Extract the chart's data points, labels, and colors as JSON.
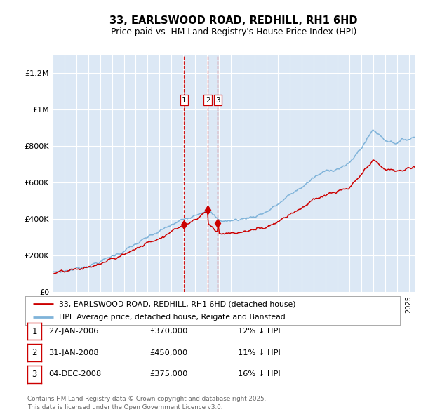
{
  "title": "33, EARLSWOOD ROAD, REDHILL, RH1 6HD",
  "subtitle": "Price paid vs. HM Land Registry's House Price Index (HPI)",
  "ylim": [
    0,
    1300000
  ],
  "yticks": [
    0,
    200000,
    400000,
    600000,
    800000,
    1000000,
    1200000
  ],
  "ytick_labels": [
    "£0",
    "£200K",
    "£400K",
    "£600K",
    "£800K",
    "£1M",
    "£1.2M"
  ],
  "sale_year_floats": [
    2006.08,
    2008.08,
    2008.92
  ],
  "sale_prices": [
    370000,
    450000,
    375000
  ],
  "sale_labels": [
    "1",
    "2",
    "3"
  ],
  "sale_info": [
    {
      "num": "1",
      "date": "27-JAN-2006",
      "price": "£370,000",
      "pct": "12%",
      "dir": "↓",
      "ref": "HPI"
    },
    {
      "num": "2",
      "date": "31-JAN-2008",
      "price": "£450,000",
      "pct": "11%",
      "dir": "↓",
      "ref": "HPI"
    },
    {
      "num": "3",
      "date": "04-DEC-2008",
      "price": "£375,000",
      "pct": "16%",
      "dir": "↓",
      "ref": "HPI"
    }
  ],
  "legend_line1": "33, EARLSWOOD ROAD, REDHILL, RH1 6HD (detached house)",
  "legend_line2": "HPI: Average price, detached house, Reigate and Banstead",
  "footer": "Contains HM Land Registry data © Crown copyright and database right 2025.\nThis data is licensed under the Open Government Licence v3.0.",
  "bg_color": "#dce8f5",
  "red_color": "#cc0000",
  "blue_color": "#7fb3d9",
  "grid_color": "#ffffff",
  "label_box_color": "#cc0000",
  "hpi_key_years": [
    1995,
    1996,
    1997,
    1998,
    1999,
    2000,
    2001,
    2002,
    2003,
    2004,
    2005,
    2006,
    2007,
    2008,
    2009,
    2010,
    2011,
    2012,
    2013,
    2014,
    2015,
    2016,
    2017,
    2018,
    2019,
    2020,
    2021,
    2022,
    2023,
    2024,
    2025.5
  ],
  "hpi_key_vals": [
    105000,
    115000,
    128000,
    145000,
    165000,
    195000,
    225000,
    260000,
    295000,
    330000,
    365000,
    395000,
    430000,
    455000,
    390000,
    390000,
    400000,
    415000,
    440000,
    480000,
    530000,
    575000,
    625000,
    660000,
    680000,
    700000,
    790000,
    890000,
    835000,
    820000,
    850000
  ],
  "red_key_years": [
    1995,
    1996,
    1997,
    1998,
    1999,
    2000,
    2001,
    2002,
    2003,
    2004,
    2005,
    2006.08,
    2006.08,
    2007,
    2008.08,
    2008.08,
    2009,
    2010,
    2011,
    2012,
    2013,
    2014,
    2015,
    2016,
    2017,
    2018,
    2019,
    2020,
    2021,
    2022,
    2023,
    2024,
    2025.5
  ],
  "red_key_vals": [
    100000,
    108000,
    120000,
    135000,
    152000,
    178000,
    205000,
    238000,
    268000,
    300000,
    333000,
    370000,
    370000,
    400000,
    450000,
    375000,
    322000,
    322000,
    328000,
    340000,
    360000,
    390000,
    430000,
    465000,
    504000,
    530000,
    548000,
    565000,
    638000,
    716000,
    673000,
    660000,
    685000
  ],
  "xstart": 1995,
  "xend": 2025.5
}
